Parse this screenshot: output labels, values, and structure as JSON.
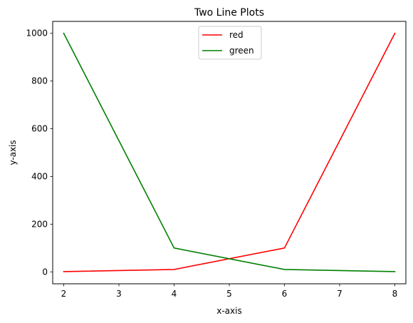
{
  "chart_data": {
    "type": "line",
    "title": "Two Line Plots",
    "xlabel": "x-axis",
    "ylabel": "y-axis",
    "xlim": [
      1.8,
      8.2
    ],
    "ylim": [
      -50,
      1050
    ],
    "xticks": [
      2,
      3,
      4,
      5,
      6,
      7,
      8
    ],
    "yticks": [
      0,
      200,
      400,
      600,
      800,
      1000
    ],
    "grid": false,
    "legend_position": "upper center",
    "series": [
      {
        "name": "red",
        "color": "#ff0000",
        "x": [
          2,
          4,
          6,
          8
        ],
        "y": [
          1,
          10,
          100,
          1000
        ]
      },
      {
        "name": "green",
        "color": "#008000",
        "x": [
          2,
          4,
          6,
          8
        ],
        "y": [
          1000,
          100,
          10,
          1
        ]
      }
    ]
  }
}
